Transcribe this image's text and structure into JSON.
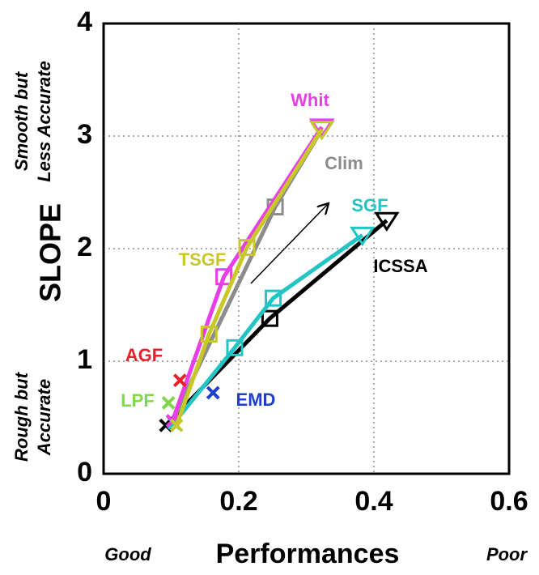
{
  "chart_data": {
    "type": "line",
    "xlabel": "Performances",
    "ylabel": "SLOPE",
    "annotations": {
      "top": [
        "Smooth but",
        "Less Accurate"
      ],
      "bottom": [
        "Rough but",
        "Accurate"
      ],
      "left": "Good",
      "right": "Poor"
    },
    "xlim": [
      0,
      0.6
    ],
    "xticks": [
      0,
      0.2,
      0.4,
      0.6
    ],
    "ylim": [
      0,
      4
    ],
    "yticks": [
      0,
      1,
      2,
      3,
      4
    ],
    "grid": true,
    "series": [
      {
        "name": "ICSSA",
        "color": "#000000",
        "x": [
          0.092,
          0.246,
          0.419
        ],
        "values": [
          0.43,
          1.38,
          2.25
        ]
      },
      {
        "name": "SGF",
        "color": "#22c4c4",
        "x": [
          0.104,
          0.194,
          0.251,
          0.383
        ],
        "values": [
          0.45,
          1.12,
          1.56,
          2.12
        ]
      },
      {
        "name": "Clim",
        "color": "#8c8c8c",
        "x": [
          0.102,
          0.254,
          0.323
        ],
        "values": [
          0.47,
          2.37,
          3.06
        ]
      },
      {
        "name": "Whit",
        "color": "#e83ee8",
        "x": [
          0.102,
          0.178,
          0.323
        ],
        "values": [
          0.47,
          1.75,
          3.08
        ]
      },
      {
        "name": "TSGF",
        "color": "#c8c828",
        "x": [
          0.108,
          0.156,
          0.212,
          0.323
        ],
        "values": [
          0.43,
          1.24,
          2.01,
          3.06
        ]
      },
      {
        "name": "AGF",
        "color": "#e8202a",
        "x": [
          0.113
        ],
        "values": [
          0.83
        ]
      },
      {
        "name": "LPF",
        "color": "#7ed84a",
        "x": [
          0.096
        ],
        "values": [
          0.63
        ]
      },
      {
        "name": "EMD",
        "color": "#2040c8",
        "x": [
          0.162
        ],
        "values": [
          0.72
        ]
      }
    ]
  }
}
